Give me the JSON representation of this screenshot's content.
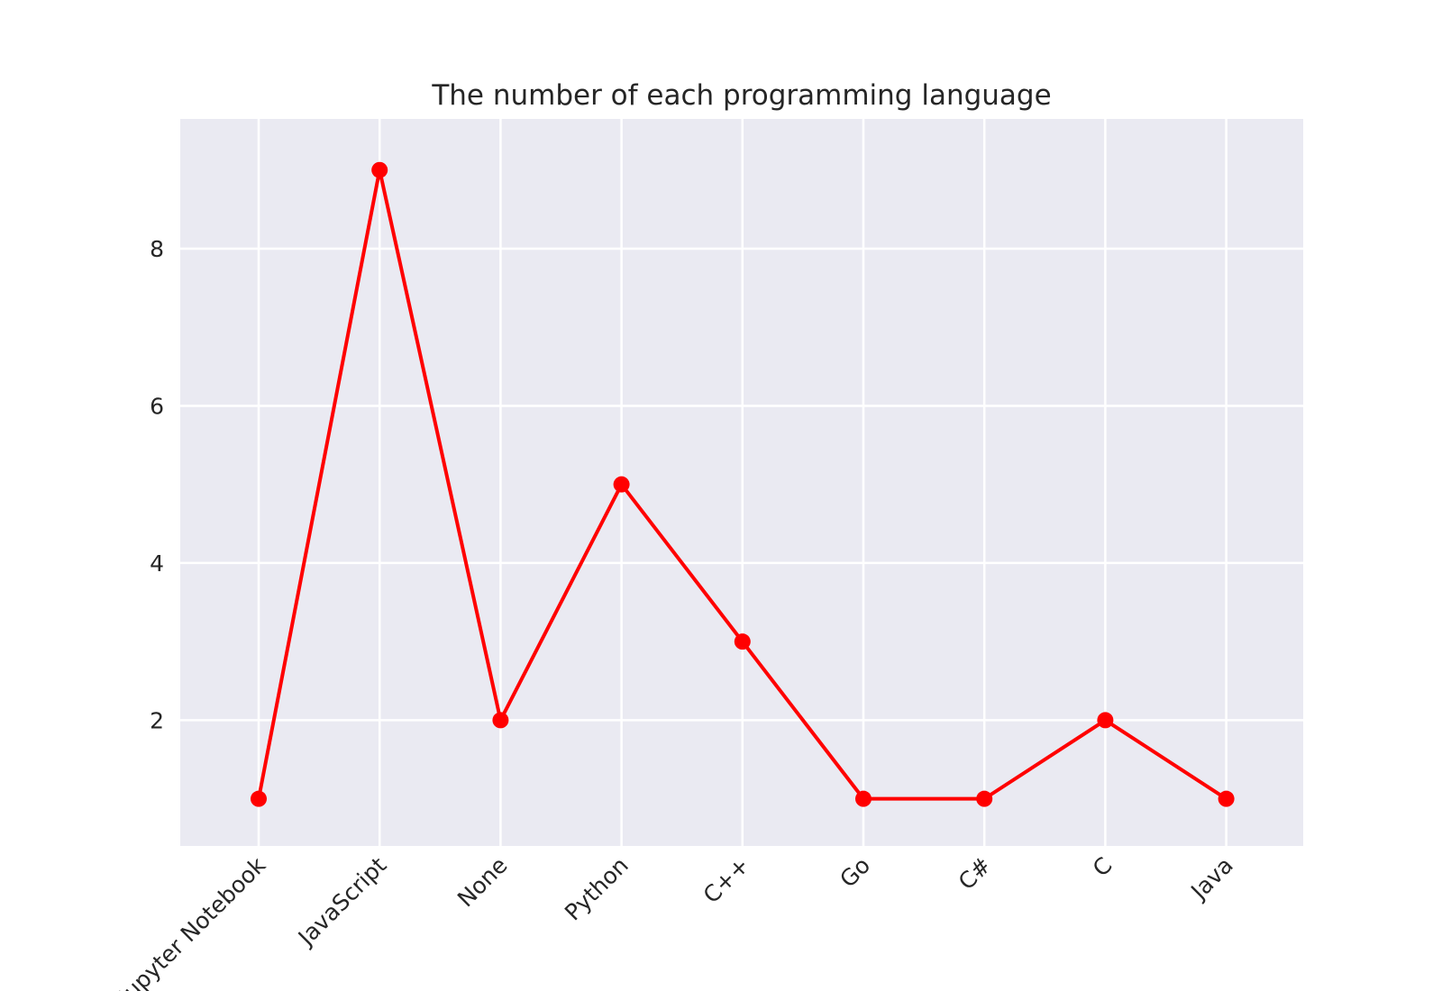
{
  "chart_data": {
    "type": "line",
    "title": "The number of each programming language",
    "xlabel": "",
    "ylabel": "",
    "categories": [
      "Jupyter Notebook",
      "JavaScript",
      "None",
      "Python",
      "C++",
      "Go",
      "C#",
      "C",
      "Java"
    ],
    "series": [
      {
        "values": [
          1,
          9,
          2,
          5,
          3,
          1,
          1,
          2,
          1
        ],
        "color": "#ff0000",
        "marker": "circle"
      }
    ],
    "yticks": [
      2,
      4,
      6,
      8
    ],
    "ylim": [
      0.4,
      9.65
    ],
    "grid": true,
    "background": "#eaeaf2",
    "grid_color": "#ffffff",
    "x_tick_rotation_deg": -45
  }
}
